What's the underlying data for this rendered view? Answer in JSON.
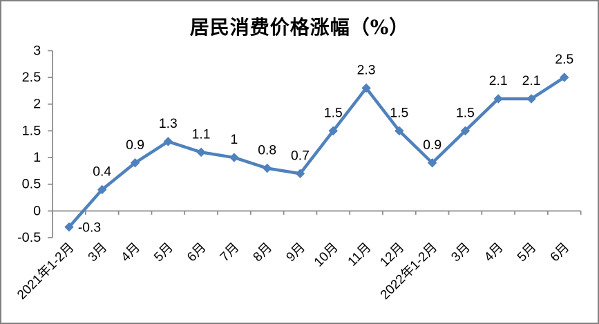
{
  "window": {
    "title": "居民消费价格涨幅（%）"
  },
  "colors": {
    "line": "#4F81BD",
    "marker": "#4F81BD",
    "axis": "#8C8C8C",
    "text": "#000000",
    "border": "#808080",
    "background": "#FFFFFF"
  },
  "chart_data": {
    "type": "line",
    "title": "居民消费价格涨幅（%）",
    "categories": [
      "2021年1-2月",
      "3月",
      "4月",
      "5月",
      "6月",
      "7月",
      "8月",
      "9月",
      "10月",
      "11月",
      "12月",
      "2022年1-2月",
      "3月",
      "4月",
      "5月",
      "6月"
    ],
    "series": [
      {
        "name": "居民消费价格涨幅",
        "values": [
          -0.3,
          0.4,
          0.9,
          1.3,
          1.1,
          1,
          0.8,
          0.7,
          1.5,
          2.3,
          1.5,
          0.9,
          1.5,
          2.1,
          2.1,
          2.5
        ]
      }
    ],
    "data_labels": [
      "-0.3",
      "0.4",
      "0.9",
      "1.3",
      "1.1",
      "1",
      "0.8",
      "0.7",
      "1.5",
      "2.3",
      "1.5",
      "0.9",
      "1.5",
      "2.1",
      "2.1",
      "2.5"
    ],
    "ylabel": "",
    "xlabel": "",
    "ylim": [
      -0.5,
      3
    ],
    "ytick_step": 0.5,
    "yticks": [
      "3",
      "2.5",
      "2",
      "1.5",
      "1",
      "0.5",
      "0",
      "-0.5"
    ],
    "x_label_rotation": -45,
    "marker_shape": "diamond",
    "grid": false,
    "legend_position": "none"
  }
}
